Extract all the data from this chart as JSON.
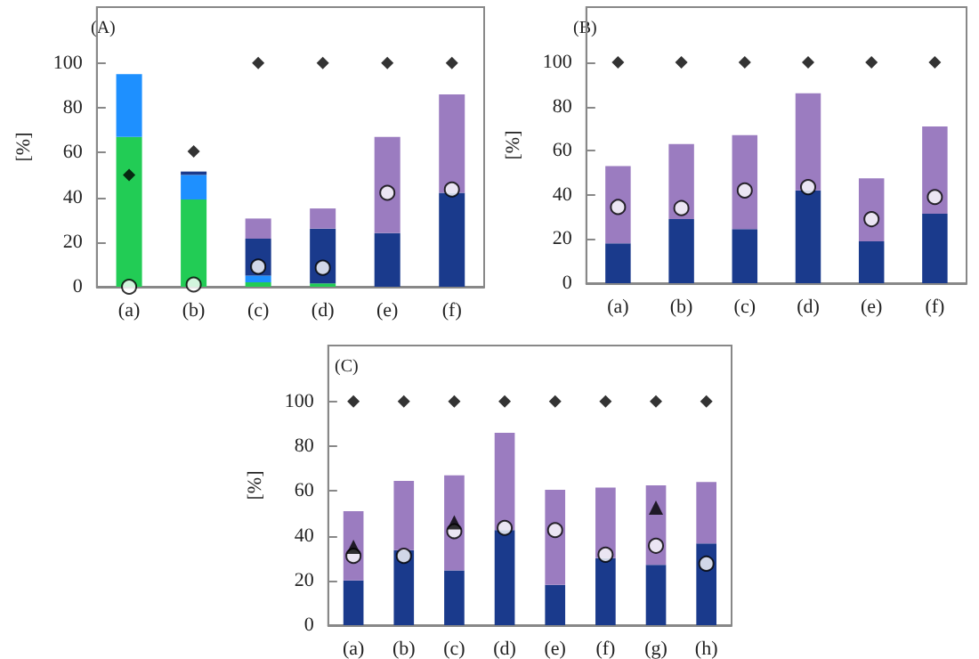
{
  "chart_data": [
    {
      "type": "bar",
      "stacked": true,
      "ylabel": "[%]",
      "annotations": [
        "(A)"
      ],
      "categories": [
        "(a)",
        "(b)",
        "(c)",
        "(d)",
        "(e)",
        "(f)"
      ],
      "ylim": [
        0,
        125
      ],
      "yticks": [
        0,
        20,
        40,
        60,
        80,
        100
      ],
      "series": [
        {
          "color": "#22cc55",
          "values": [
            67,
            39,
            2,
            1.5,
            0,
            0
          ]
        },
        {
          "color": "#1e90ff",
          "values": [
            28,
            11,
            3,
            0,
            0,
            0
          ]
        },
        {
          "color": "#1a3a8c",
          "values": [
            0,
            1.5,
            16.5,
            24.5,
            24,
            42
          ]
        },
        {
          "color": "#9b7cc0",
          "values": [
            0,
            0,
            9,
            9,
            43,
            44
          ]
        },
        {
          "type": "scatter",
          "marker": "diamond",
          "color": "#000000",
          "x": [
            "(a)",
            "(b)",
            "(c)",
            "(d)",
            "(e)",
            "(f)"
          ],
          "values": [
            50,
            60.5,
            100,
            100,
            100,
            100
          ]
        },
        {
          "type": "scatter",
          "marker": "circle",
          "color": "#ffffff",
          "x": [
            "(a)",
            "(b)",
            "(c)",
            "(d)",
            "(e)",
            "(f)"
          ],
          "values": [
            0,
            1,
            9,
            8.5,
            42,
            43.5
          ]
        }
      ]
    },
    {
      "type": "bar",
      "stacked": true,
      "ylabel": "[%]",
      "annotations": [
        "(B)"
      ],
      "categories": [
        "(a)",
        "(b)",
        "(c)",
        "(d)",
        "(e)",
        "(f)"
      ],
      "ylim": [
        0,
        125
      ],
      "yticks": [
        0,
        20,
        40,
        60,
        80,
        100
      ],
      "series": [
        {
          "color": "#1a3a8c",
          "values": [
            18,
            29,
            24.5,
            42,
            19,
            31.5
          ]
        },
        {
          "color": "#9b7cc0",
          "values": [
            35,
            34,
            42.5,
            44,
            28.5,
            39.5
          ]
        },
        {
          "type": "scatter",
          "marker": "diamond",
          "color": "#000000",
          "x": [
            "(a)",
            "(b)",
            "(c)",
            "(d)",
            "(e)",
            "(f)"
          ],
          "values": [
            100,
            100,
            100,
            100,
            100,
            100
          ]
        },
        {
          "type": "scatter",
          "marker": "circle",
          "color": "#ffffff",
          "x": [
            "(a)",
            "(b)",
            "(c)",
            "(d)",
            "(e)",
            "(f)"
          ],
          "values": [
            34.5,
            34,
            42,
            43.5,
            29,
            39
          ]
        }
      ]
    },
    {
      "type": "bar",
      "stacked": true,
      "ylabel": "[%]",
      "annotations": [
        "(C)"
      ],
      "categories": [
        "(a)",
        "(b)",
        "(c)",
        "(d)",
        "(e)",
        "(f)",
        "(g)",
        "(h)"
      ],
      "ylim": [
        0,
        125
      ],
      "yticks": [
        0,
        20,
        40,
        60,
        80,
        100
      ],
      "series": [
        {
          "color": "#1a3a8c",
          "values": [
            20,
            33.5,
            24.5,
            42.5,
            18,
            30,
            27,
            36.5
          ]
        },
        {
          "color": "#9b7cc0",
          "values": [
            31,
            31,
            42.5,
            43.5,
            42.5,
            31.5,
            35.5,
            27.5
          ]
        },
        {
          "type": "scatter",
          "marker": "diamond",
          "color": "#000000",
          "x": [
            "(a)",
            "(b)",
            "(c)",
            "(d)",
            "(e)",
            "(f)",
            "(g)",
            "(h)"
          ],
          "values": [
            100,
            100,
            100,
            100,
            100,
            100,
            100,
            100
          ]
        },
        {
          "type": "scatter",
          "marker": "triangle",
          "color": "#000000",
          "x": [
            "(a)",
            "(c)",
            "(g)"
          ],
          "values": [
            35,
            46,
            52.5
          ]
        },
        {
          "type": "scatter",
          "marker": "circle",
          "color": "#ffffff",
          "x": [
            "(a)",
            "(b)",
            "(c)",
            "(d)",
            "(e)",
            "(f)",
            "(g)",
            "(h)"
          ],
          "values": [
            31,
            31,
            42,
            43.5,
            42.5,
            31.5,
            35.5,
            27.5
          ]
        }
      ]
    }
  ]
}
